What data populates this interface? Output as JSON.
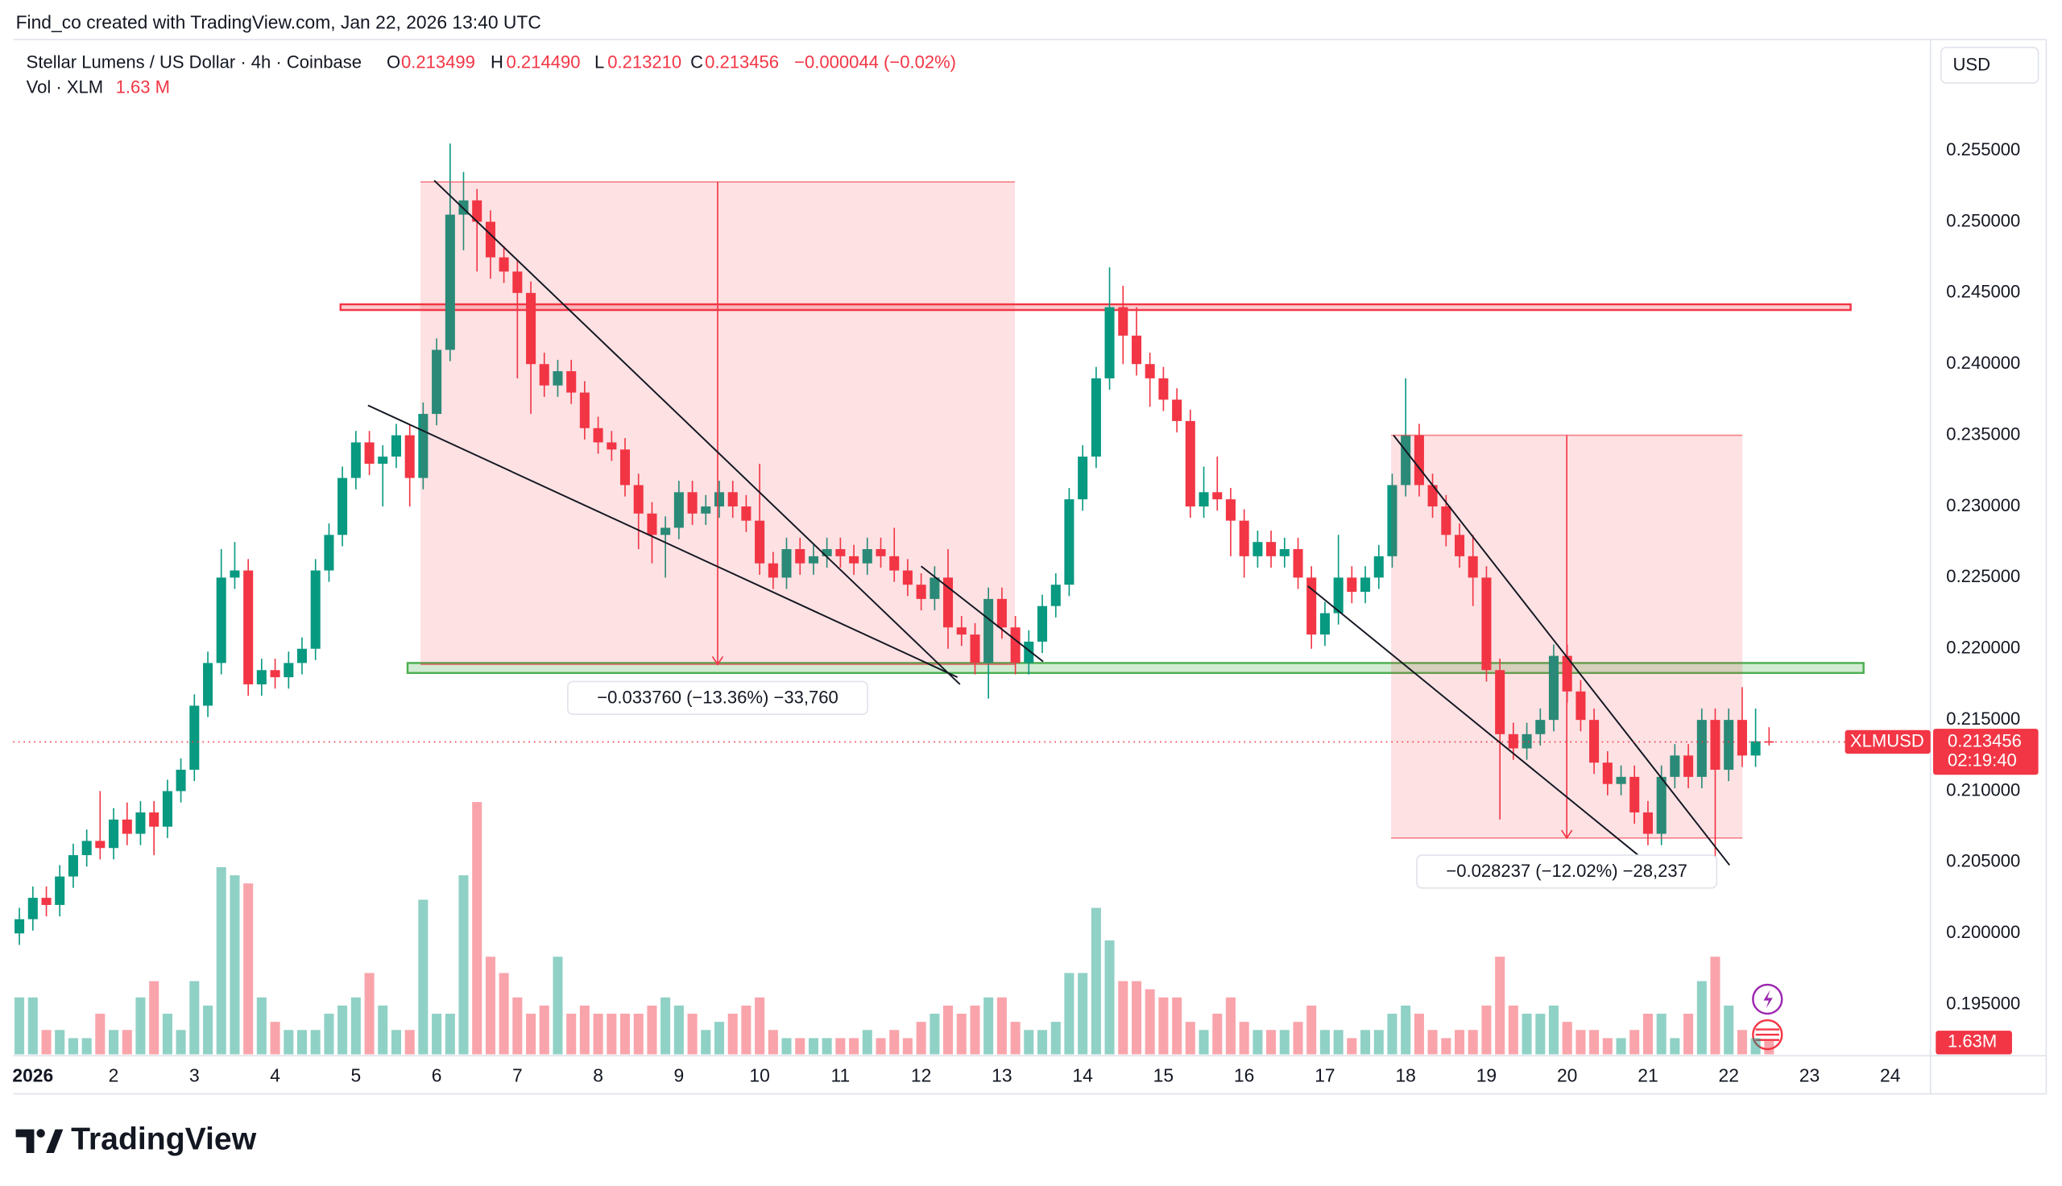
{
  "credit": "Find_co created with TradingView.com, Jan 22, 2026 13:40 UTC",
  "brand": "TradingView",
  "chart_data": {
    "type": "candlestick",
    "title": "Stellar Lumens / US Dollar · 4h · Coinbase",
    "ohlc_legend": [
      {
        "label": "O",
        "value": "0.213499"
      },
      {
        "label": "H",
        "value": "0.214490"
      },
      {
        "label": "L",
        "value": "0.213210"
      },
      {
        "label": "C",
        "value": "0.213456"
      }
    ],
    "change": "−0.000044 (−0.02%)",
    "volume_title": "Vol · XLM",
    "volume_legend": "1.63 M",
    "volume_tag": "1.63M",
    "currency": "USD",
    "symbol": "XLMUSD",
    "countdown": "02:19:40",
    "up_color": "#089981",
    "down_color": "#f23645",
    "grid": false,
    "xlim": [
      0.593,
      24.45
    ],
    "xticks": [
      {
        "value": 1,
        "label": "2026"
      },
      2,
      3,
      4,
      5,
      6,
      7,
      8,
      9,
      10,
      11,
      12,
      13,
      14,
      15,
      16,
      17,
      18,
      19,
      20,
      21,
      22,
      23,
      24
    ],
    "ylim": [
      0.1915,
      0.2628
    ],
    "yticks": [
      {
        "value": 0.195,
        "label": "0.195000"
      },
      {
        "value": 0.2,
        "label": "0.200000"
      },
      {
        "value": 0.205,
        "label": "0.205000"
      },
      {
        "value": 0.21,
        "label": "0.210000"
      },
      {
        "value": 0.215,
        "label": "0.215000"
      },
      {
        "value": 0.22,
        "label": "0.220000"
      },
      {
        "value": 0.225,
        "label": "0.225000"
      },
      {
        "value": 0.23,
        "label": "0.230000"
      },
      {
        "value": 0.235,
        "label": "0.235000"
      },
      {
        "value": 0.24,
        "label": "0.240000"
      },
      {
        "value": 0.245,
        "label": "0.245000"
      },
      {
        "value": 0.25,
        "label": "0.250000"
      },
      {
        "value": 0.255,
        "label": "0.255000"
      }
    ],
    "x": [
      0.833,
      1,
      1.167,
      1.333,
      1.5,
      1.667,
      1.833,
      2,
      2.167,
      2.333,
      2.5,
      2.667,
      2.833,
      3,
      3.167,
      3.333,
      3.5,
      3.667,
      3.833,
      4,
      4.167,
      4.333,
      4.5,
      4.667,
      4.833,
      5,
      5.167,
      5.333,
      5.5,
      5.667,
      5.833,
      6,
      6.167,
      6.333,
      6.5,
      6.667,
      6.833,
      7,
      7.167,
      7.333,
      7.5,
      7.667,
      7.833,
      8,
      8.167,
      8.333,
      8.5,
      8.667,
      8.833,
      9,
      9.167,
      9.333,
      9.5,
      9.667,
      9.833,
      10,
      10.167,
      10.333,
      10.5,
      10.667,
      10.833,
      11,
      11.167,
      11.333,
      11.5,
      11.667,
      11.833,
      12,
      12.167,
      12.333,
      12.5,
      12.667,
      12.833,
      13,
      13.167,
      13.333,
      13.5,
      13.667,
      13.833,
      14,
      14.167,
      14.333,
      14.5,
      14.667,
      14.833,
      15,
      15.167,
      15.333,
      15.5,
      15.667,
      15.833,
      16,
      16.167,
      16.333,
      16.5,
      16.667,
      16.833,
      17,
      17.167,
      17.333,
      17.5,
      17.667,
      17.833,
      18,
      18.167,
      18.333,
      18.5,
      18.667,
      18.833,
      19,
      19.167,
      19.333,
      19.5,
      19.667,
      19.833,
      20,
      20.167,
      20.333,
      20.5,
      20.667,
      20.833,
      21,
      21.167,
      21.333,
      21.5,
      21.667,
      21.833,
      22,
      22.167,
      22.333,
      22.5
    ],
    "open": [
      0.2,
      0.201,
      0.2025,
      0.202,
      0.204,
      0.2055,
      0.2065,
      0.206,
      0.208,
      0.207,
      0.2085,
      0.2075,
      0.21,
      0.2115,
      0.216,
      0.219,
      0.225,
      0.2255,
      0.2175,
      0.2185,
      0.218,
      0.219,
      0.22,
      0.2255,
      0.228,
      0.232,
      0.2345,
      0.233,
      0.2335,
      0.235,
      0.232,
      0.2365,
      0.241,
      0.2505,
      0.2515,
      0.25,
      0.2475,
      0.2465,
      0.245,
      0.24,
      0.2385,
      0.2395,
      0.238,
      0.2355,
      0.2345,
      0.234,
      0.2315,
      0.2295,
      0.228,
      0.2285,
      0.231,
      0.2295,
      0.23,
      0.231,
      0.23,
      0.229,
      0.226,
      0.225,
      0.227,
      0.226,
      0.2265,
      0.227,
      0.2265,
      0.226,
      0.227,
      0.2265,
      0.2255,
      0.2245,
      0.2235,
      0.225,
      0.2215,
      0.221,
      0.219,
      0.2235,
      0.2215,
      0.219,
      0.2205,
      0.223,
      0.2245,
      0.2305,
      0.2335,
      0.239,
      0.244,
      0.242,
      0.24,
      0.239,
      0.2375,
      0.236,
      0.23,
      0.231,
      0.2305,
      0.229,
      0.2265,
      0.2275,
      0.2265,
      0.227,
      0.225,
      0.221,
      0.2225,
      0.225,
      0.224,
      0.225,
      0.2265,
      0.2315,
      0.235,
      0.2315,
      0.23,
      0.228,
      0.2265,
      0.225,
      0.2185,
      0.214,
      0.213,
      0.214,
      0.215,
      0.2195,
      0.217,
      0.215,
      0.212,
      0.2105,
      0.211,
      0.2085,
      0.207,
      0.211,
      0.2125,
      0.211,
      0.215,
      0.2115,
      0.215,
      0.2125,
      0.213499
    ],
    "high": [
      0.2018,
      0.2033,
      0.2033,
      0.2048,
      0.2063,
      0.2073,
      0.21,
      0.2088,
      0.2092,
      0.2093,
      0.2093,
      0.2108,
      0.2123,
      0.2168,
      0.2198,
      0.227,
      0.2275,
      0.2263,
      0.2193,
      0.2193,
      0.2198,
      0.2208,
      0.2263,
      0.2288,
      0.2328,
      0.2353,
      0.2353,
      0.2343,
      0.2358,
      0.2358,
      0.2373,
      0.2418,
      0.2555,
      0.2535,
      0.2523,
      0.2508,
      0.2483,
      0.2473,
      0.2458,
      0.2408,
      0.2403,
      0.2403,
      0.2388,
      0.2363,
      0.2353,
      0.2348,
      0.2323,
      0.2303,
      0.2293,
      0.2318,
      0.2318,
      0.2308,
      0.2318,
      0.2318,
      0.2308,
      0.233,
      0.2268,
      0.2278,
      0.2278,
      0.2273,
      0.2278,
      0.2278,
      0.2273,
      0.2278,
      0.2278,
      0.2285,
      0.2263,
      0.2253,
      0.2258,
      0.227,
      0.2223,
      0.2218,
      0.2243,
      0.2243,
      0.2223,
      0.2213,
      0.2238,
      0.2253,
      0.2313,
      0.2343,
      0.2398,
      0.2468,
      0.2455,
      0.244,
      0.2408,
      0.2398,
      0.2383,
      0.2368,
      0.2328,
      0.2335,
      0.2313,
      0.2298,
      0.2283,
      0.2283,
      0.2278,
      0.2278,
      0.2258,
      0.2233,
      0.228,
      0.2258,
      0.2258,
      0.2273,
      0.2323,
      0.239,
      0.2358,
      0.2323,
      0.2308,
      0.2288,
      0.228,
      0.2258,
      0.2193,
      0.2148,
      0.2148,
      0.2158,
      0.2203,
      0.2203,
      0.2178,
      0.2158,
      0.2128,
      0.2118,
      0.2118,
      0.2093,
      0.2118,
      0.2133,
      0.2133,
      0.2158,
      0.2158,
      0.2158,
      0.2173,
      0.2158,
      0.21449
    ],
    "low": [
      0.1992,
      0.2002,
      0.2012,
      0.2012,
      0.2032,
      0.2047,
      0.2052,
      0.2052,
      0.2062,
      0.2062,
      0.2055,
      0.2067,
      0.2092,
      0.2107,
      0.2152,
      0.2182,
      0.2242,
      0.2167,
      0.2167,
      0.2172,
      0.2172,
      0.2182,
      0.2192,
      0.2247,
      0.2272,
      0.2312,
      0.2322,
      0.23,
      0.2327,
      0.23,
      0.2312,
      0.2357,
      0.2402,
      0.248,
      0.2465,
      0.246,
      0.2457,
      0.239,
      0.2365,
      0.2377,
      0.2377,
      0.2372,
      0.2347,
      0.2337,
      0.2332,
      0.2307,
      0.227,
      0.226,
      0.225,
      0.2277,
      0.2287,
      0.2287,
      0.2292,
      0.2292,
      0.2282,
      0.2252,
      0.2242,
      0.2242,
      0.2252,
      0.2252,
      0.2257,
      0.2257,
      0.2252,
      0.2252,
      0.2257,
      0.2247,
      0.2237,
      0.2227,
      0.2227,
      0.22,
      0.2202,
      0.2182,
      0.2165,
      0.2207,
      0.2182,
      0.2182,
      0.2197,
      0.2222,
      0.2237,
      0.2297,
      0.2327,
      0.2382,
      0.24,
      0.2392,
      0.237,
      0.2367,
      0.2352,
      0.2292,
      0.2292,
      0.2297,
      0.2265,
      0.225,
      0.2257,
      0.2257,
      0.2257,
      0.2242,
      0.22,
      0.2202,
      0.2217,
      0.2232,
      0.2232,
      0.2242,
      0.2257,
      0.2307,
      0.2307,
      0.2292,
      0.2272,
      0.2257,
      0.223,
      0.2177,
      0.208,
      0.2122,
      0.2122,
      0.2132,
      0.2142,
      0.2162,
      0.2142,
      0.2112,
      0.2097,
      0.2097,
      0.2077,
      0.2062,
      0.2062,
      0.2102,
      0.2102,
      0.2102,
      0.205,
      0.2107,
      0.2117,
      0.2117,
      0.21321
    ],
    "close": [
      0.201,
      0.2025,
      0.202,
      0.204,
      0.2055,
      0.2065,
      0.206,
      0.208,
      0.207,
      0.2085,
      0.2075,
      0.21,
      0.2115,
      0.216,
      0.219,
      0.225,
      0.2255,
      0.2175,
      0.2185,
      0.218,
      0.219,
      0.22,
      0.2255,
      0.228,
      0.232,
      0.2345,
      0.233,
      0.2335,
      0.235,
      0.232,
      0.2365,
      0.241,
      0.2505,
      0.2515,
      0.25,
      0.2475,
      0.2465,
      0.245,
      0.24,
      0.2385,
      0.2395,
      0.238,
      0.2355,
      0.2345,
      0.234,
      0.2315,
      0.2295,
      0.228,
      0.2285,
      0.231,
      0.2295,
      0.23,
      0.231,
      0.23,
      0.229,
      0.226,
      0.225,
      0.227,
      0.226,
      0.2265,
      0.227,
      0.2265,
      0.226,
      0.227,
      0.2265,
      0.2255,
      0.2245,
      0.2235,
      0.225,
      0.2215,
      0.221,
      0.219,
      0.2235,
      0.2215,
      0.219,
      0.2205,
      0.223,
      0.2245,
      0.2305,
      0.2335,
      0.239,
      0.244,
      0.242,
      0.24,
      0.239,
      0.2375,
      0.236,
      0.23,
      0.231,
      0.2305,
      0.229,
      0.2265,
      0.2275,
      0.2265,
      0.227,
      0.225,
      0.221,
      0.2225,
      0.225,
      0.224,
      0.225,
      0.2265,
      0.2315,
      0.235,
      0.2315,
      0.23,
      0.228,
      0.2265,
      0.225,
      0.2185,
      0.214,
      0.213,
      0.214,
      0.215,
      0.2195,
      0.217,
      0.215,
      0.212,
      0.2105,
      0.211,
      0.2085,
      0.207,
      0.211,
      0.2125,
      0.211,
      0.215,
      0.2115,
      0.215,
      0.2125,
      0.2135,
      0.213456
    ],
    "volume": [
      7,
      7,
      3,
      3,
      2,
      2,
      5,
      3,
      3,
      7,
      9,
      5,
      3,
      9,
      6,
      23,
      22,
      21,
      7,
      4,
      3,
      3,
      3,
      5,
      6,
      7,
      10,
      6,
      3,
      3,
      19,
      5,
      5,
      22,
      31,
      12,
      10,
      7,
      5,
      6,
      12,
      5,
      6,
      5,
      5,
      5,
      5,
      6,
      7,
      6,
      5,
      3,
      4,
      5,
      6,
      7,
      3,
      2,
      2,
      2,
      2,
      2,
      2,
      3,
      2,
      3,
      2,
      4,
      5,
      6,
      5,
      6,
      7,
      7,
      4,
      3,
      3,
      4,
      10,
      10,
      18,
      14,
      9,
      9,
      8,
      7,
      7,
      4,
      3,
      5,
      7,
      4,
      3,
      3,
      3,
      4,
      6,
      3,
      3,
      2,
      3,
      3,
      5,
      6,
      5,
      3,
      2,
      3,
      3,
      6,
      12,
      6,
      5,
      5,
      6,
      4,
      3,
      3,
      2,
      2,
      3,
      5,
      5,
      2,
      5,
      9,
      12,
      6,
      3,
      2,
      1.63
    ],
    "zones": [
      {
        "x": [
          4.81,
          23.51
        ],
        "y": [
          0.2438,
          0.2442
        ],
        "color": "#f23645"
      },
      {
        "x": [
          5.64,
          23.67
        ],
        "y": [
          0.2183,
          0.219
        ],
        "color": "#4caf50"
      }
    ],
    "measures": [
      {
        "x": [
          5.8,
          13.16
        ],
        "y": [
          0.2528,
          0.2189
        ],
        "label": "−0.033760 (−13.36%) −33,760"
      },
      {
        "x": [
          17.82,
          22.17
        ],
        "y": [
          0.235,
          0.2067
        ],
        "label": "−0.028237 (−12.02%) −28,237"
      }
    ],
    "trendlines": [
      {
        "x": [
          5.97,
          12.48
        ],
        "y": [
          0.2529,
          0.2175
        ]
      },
      {
        "x": [
          5.15,
          12.45
        ],
        "y": [
          0.2371,
          0.218
        ]
      },
      {
        "x": [
          12,
          13.51
        ],
        "y": [
          0.2258,
          0.2191
        ]
      },
      {
        "x": [
          17.85,
          22.01
        ],
        "y": [
          0.235,
          0.2048
        ]
      },
      {
        "x": [
          16.79,
          21.03
        ],
        "y": [
          0.2244,
          0.2048
        ]
      }
    ]
  }
}
